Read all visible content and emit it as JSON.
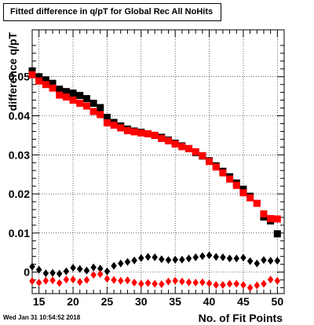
{
  "chart_data": {
    "type": "scatter",
    "title": "Fitted difference in q/pT for Global Rec All NoHits",
    "xlabel": "No. of Fit Points",
    "ylabel": "difference q/pT",
    "xlim": [
      14,
      51
    ],
    "ylim": [
      -0.0055,
      0.062
    ],
    "x_ticks": [
      15,
      20,
      25,
      30,
      35,
      40,
      45,
      50
    ],
    "y_ticks": [
      0,
      0.01,
      0.02,
      0.03,
      0.04,
      0.05
    ],
    "y_tick_labels": [
      "0",
      "0.01",
      "0.02",
      "0.03",
      "0.04",
      "0.05"
    ],
    "grid": true,
    "series": [
      {
        "marker": "square",
        "color": "#000000",
        "x": [
          14,
          15,
          16,
          17,
          18,
          19,
          20,
          21,
          22,
          23,
          24,
          25,
          26,
          27,
          28,
          29,
          30,
          31,
          32,
          33,
          34,
          35,
          36,
          37,
          38,
          39,
          40,
          41,
          42,
          43,
          44,
          45,
          46,
          47,
          48,
          49,
          50
        ],
        "y": [
          0.0515,
          0.05,
          0.0492,
          0.0483,
          0.0468,
          0.0462,
          0.0458,
          0.0452,
          0.0444,
          0.0432,
          0.0421,
          0.0396,
          0.0383,
          0.0374,
          0.0366,
          0.0361,
          0.0358,
          0.0354,
          0.035,
          0.0345,
          0.0338,
          0.033,
          0.0323,
          0.0316,
          0.0306,
          0.0297,
          0.0285,
          0.0272,
          0.0258,
          0.0244,
          0.0228,
          0.0212,
          0.0194,
          0.0176,
          0.0141,
          0.0131,
          0.0098
        ]
      },
      {
        "marker": "square",
        "color": "#ff0000",
        "x": [
          14,
          15,
          16,
          17,
          18,
          19,
          20,
          21,
          22,
          23,
          24,
          25,
          26,
          27,
          28,
          29,
          30,
          31,
          32,
          33,
          34,
          35,
          36,
          37,
          38,
          39,
          40,
          41,
          42,
          43,
          44,
          45,
          46,
          47,
          48,
          49,
          50
        ],
        "y": [
          0.0505,
          0.0489,
          0.048,
          0.0471,
          0.0453,
          0.0448,
          0.044,
          0.0432,
          0.0425,
          0.0411,
          0.0403,
          0.0382,
          0.0376,
          0.0369,
          0.0362,
          0.0359,
          0.0356,
          0.0354,
          0.035,
          0.0342,
          0.0336,
          0.0328,
          0.0321,
          0.0316,
          0.0308,
          0.0298,
          0.0283,
          0.0269,
          0.0254,
          0.0238,
          0.0222,
          0.0203,
          0.019,
          0.0176,
          0.0149,
          0.0137,
          0.0136
        ]
      },
      {
        "marker": "diamond",
        "color": "#000000",
        "x": [
          14,
          15,
          16,
          17,
          18,
          19,
          20,
          21,
          22,
          23,
          24,
          25,
          26,
          27,
          28,
          29,
          30,
          31,
          32,
          33,
          34,
          35,
          36,
          37,
          38,
          39,
          40,
          41,
          42,
          43,
          44,
          45,
          46,
          47,
          48,
          49,
          50
        ],
        "y": [
          0.0014,
          0.0006,
          -0.0003,
          -0.0002,
          -0.0004,
          0.0002,
          0.0011,
          0.0008,
          0.0004,
          0.0012,
          0.0009,
          0.0002,
          0.0016,
          0.0022,
          0.0026,
          0.003,
          0.0036,
          0.0039,
          0.0038,
          0.0033,
          0.0031,
          0.0032,
          0.0032,
          0.0035,
          0.0038,
          0.0041,
          0.0043,
          0.0039,
          0.0038,
          0.0035,
          0.0035,
          0.0037,
          0.0028,
          0.0022,
          0.0031,
          0.0029,
          0.0029
        ]
      },
      {
        "marker": "diamond",
        "color": "#ff0000",
        "x": [
          14,
          15,
          16,
          17,
          18,
          19,
          20,
          21,
          22,
          23,
          24,
          25,
          26,
          27,
          28,
          29,
          30,
          31,
          32,
          33,
          34,
          35,
          36,
          37,
          38,
          39,
          40,
          41,
          42,
          43,
          44,
          45,
          46,
          47,
          48,
          49,
          50
        ],
        "y": [
          -0.0023,
          -0.0027,
          -0.0022,
          -0.0021,
          -0.0028,
          -0.0019,
          -0.0019,
          -0.0025,
          -0.002,
          -0.0007,
          -0.0005,
          -0.0017,
          -0.002,
          -0.0022,
          -0.0021,
          -0.0027,
          -0.003,
          -0.0028,
          -0.003,
          -0.0031,
          -0.0024,
          -0.0022,
          -0.0024,
          -0.0026,
          -0.0027,
          -0.0026,
          -0.0029,
          -0.0033,
          -0.0033,
          -0.003,
          -0.003,
          -0.0033,
          -0.004,
          -0.0034,
          -0.003,
          -0.0019,
          -0.0022
        ]
      }
    ]
  },
  "footer": {
    "timestamp": "Wed Jan 31 10:54:52 2018"
  }
}
